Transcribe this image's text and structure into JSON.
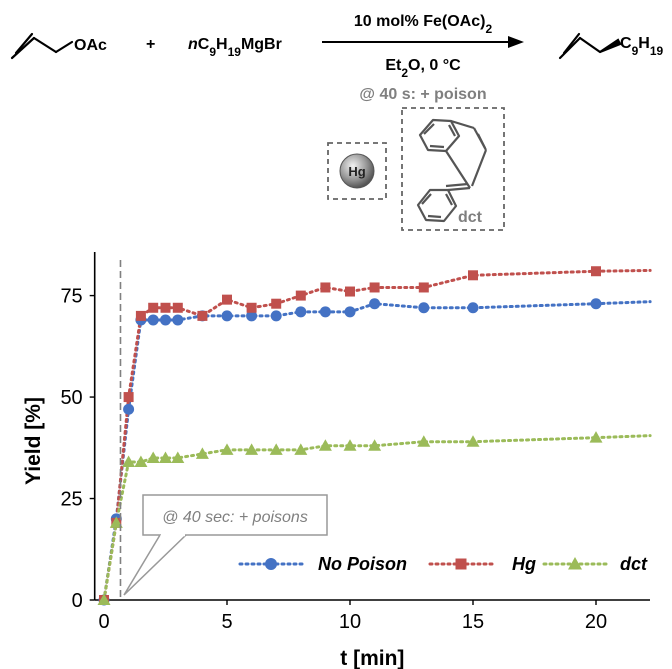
{
  "scheme": {
    "substrate": "OAc",
    "plus": "+",
    "grignard_prefix": "n",
    "grignard_formula": "C9H19MgBr",
    "catalyst": "10 mol% Fe(OAc)2",
    "conditions": "Et2O, 0 °C",
    "poison_note": "@ 40 s: + poison",
    "product_group": "C9H19",
    "hg_label": "Hg",
    "dct_label": "dct"
  },
  "chart_data": {
    "type": "line",
    "xlabel": "t [min]",
    "ylabel": "Yield [%]",
    "xlim": [
      -0.5,
      22.2
    ],
    "ylim": [
      0,
      85
    ],
    "xticks": [
      0,
      5,
      10,
      15,
      20
    ],
    "yticks": [
      0,
      25,
      50,
      75
    ],
    "legend_position": "bottom-right",
    "annotation": {
      "text": "@ 40 sec: + poisons",
      "x": 0.67
    },
    "series": [
      {
        "name": "No Poison",
        "color": "#4472c4",
        "marker": "circle",
        "x": [
          0,
          0.5,
          1,
          1.5,
          2,
          2.5,
          3,
          4,
          5,
          6,
          7,
          8,
          9,
          10,
          11,
          13,
          15,
          20
        ],
        "y": [
          0,
          20,
          47,
          69,
          69,
          69,
          69,
          70,
          70,
          70,
          70,
          71,
          71,
          71,
          73,
          72,
          72,
          73
        ],
        "trend": [
          [
            20,
            73
          ],
          [
            22.2,
            73.5
          ]
        ]
      },
      {
        "name": "Hg",
        "color": "#c0504d",
        "marker": "square",
        "x": [
          0,
          0.5,
          1,
          1.5,
          2,
          2.5,
          3,
          4,
          5,
          6,
          7,
          8,
          9,
          10,
          11,
          13,
          15,
          20
        ],
        "y": [
          0,
          19,
          50,
          70,
          72,
          72,
          72,
          70,
          74,
          72,
          73,
          75,
          77,
          76,
          77,
          77,
          80,
          81
        ],
        "trend": [
          [
            20,
            81
          ],
          [
            22.2,
            81.2
          ]
        ]
      },
      {
        "name": "dct",
        "color": "#9bbb59",
        "marker": "triangle",
        "x": [
          0,
          0.5,
          1,
          1.5,
          2,
          2.5,
          3,
          4,
          5,
          6,
          7,
          8,
          9,
          10,
          11,
          13,
          15,
          20
        ],
        "y": [
          0,
          19,
          34,
          34,
          35,
          35,
          35,
          36,
          37,
          37,
          37,
          37,
          38,
          38,
          38,
          39,
          39,
          40
        ],
        "trend": [
          [
            20,
            40
          ],
          [
            22.2,
            40.5
          ]
        ]
      }
    ]
  }
}
